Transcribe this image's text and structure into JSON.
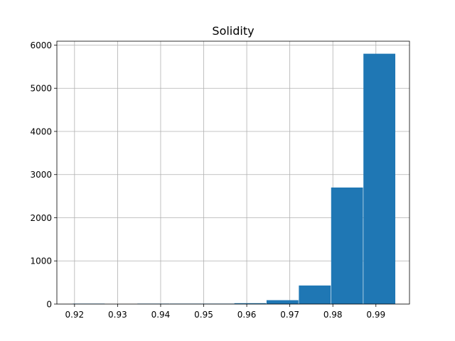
{
  "chart_data": {
    "type": "bar",
    "title": "Solidity",
    "xlabel": "",
    "ylabel": "",
    "xlim": [
      0.9159,
      0.9978
    ],
    "ylim": [
      0,
      6090
    ],
    "grid": true,
    "x_ticks": [
      0.92,
      0.93,
      0.94,
      0.95,
      0.96,
      0.97,
      0.98,
      0.99
    ],
    "x_tick_labels": [
      "0.92",
      "0.93",
      "0.94",
      "0.95",
      "0.96",
      "0.97",
      "0.98",
      "0.99"
    ],
    "y_ticks": [
      0,
      1000,
      2000,
      3000,
      4000,
      5000,
      6000
    ],
    "y_tick_labels": [
      "0",
      "1000",
      "2000",
      "3000",
      "4000",
      "5000",
      "6000"
    ],
    "bins": [
      {
        "start": 0.9196,
        "end": 0.927,
        "count": 1
      },
      {
        "start": 0.9271,
        "end": 0.9345,
        "count": 0
      },
      {
        "start": 0.9346,
        "end": 0.942,
        "count": 1
      },
      {
        "start": 0.9421,
        "end": 0.9495,
        "count": 2
      },
      {
        "start": 0.9496,
        "end": 0.957,
        "count": 5
      },
      {
        "start": 0.9571,
        "end": 0.9645,
        "count": 20
      },
      {
        "start": 0.9646,
        "end": 0.972,
        "count": 90
      },
      {
        "start": 0.9721,
        "end": 0.9795,
        "count": 430
      },
      {
        "start": 0.9796,
        "end": 0.987,
        "count": 2700
      },
      {
        "start": 0.9871,
        "end": 0.9945,
        "count": 5800
      }
    ],
    "colors": {
      "bar": "#1f77b4",
      "grid": "#b0b0b0",
      "axis": "#000000"
    }
  }
}
